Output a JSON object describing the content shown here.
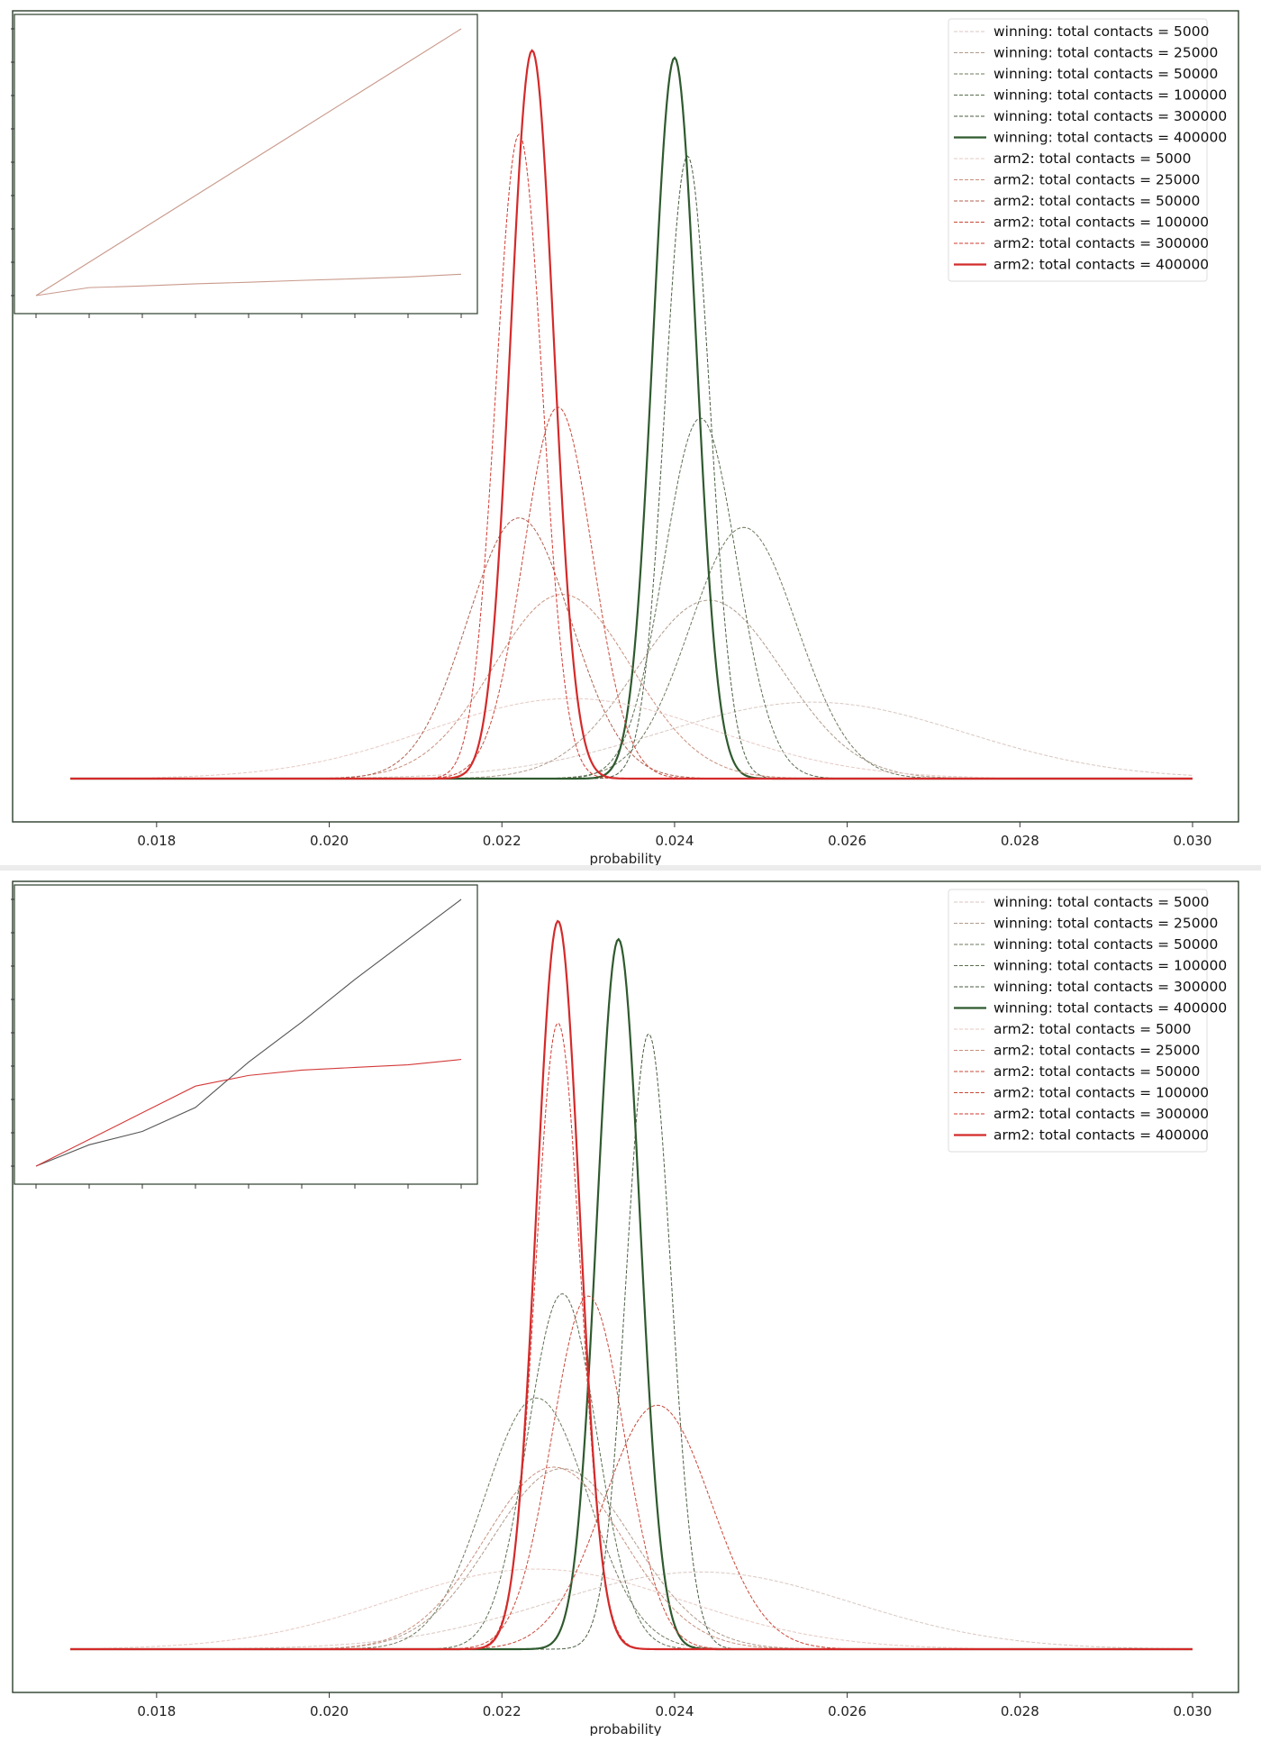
{
  "colors": {
    "winning_400000": "#2f5a2e",
    "arm2_400000": "#d42a2a"
  },
  "chart_data": [
    {
      "type": "line",
      "title": "",
      "xlabel": "probability",
      "ylabel": "",
      "xlim": [
        0.017,
        0.03
      ],
      "xticks": [
        "0.018",
        "0.020",
        "0.022",
        "0.024",
        "0.026",
        "0.028",
        "0.030"
      ],
      "grid": false,
      "legend_position": "top-right",
      "series": [
        {
          "name": "winning: total contacts = 5000",
          "group": "winning",
          "contacts": 5000,
          "mean": 0.0256,
          "sd": 0.00175,
          "peak": 0.105,
          "color": "#d8c7c0",
          "width": 1.0,
          "dashed": true
        },
        {
          "name": "winning: total contacts = 25000",
          "group": "winning",
          "contacts": 25000,
          "mean": 0.0244,
          "sd": 0.00085,
          "peak": 0.245,
          "color": "#b09b8c",
          "width": 1.0,
          "dashed": true
        },
        {
          "name": "winning: total contacts = 50000",
          "group": "winning",
          "contacts": 50000,
          "mean": 0.0248,
          "sd": 0.00062,
          "peak": 0.345,
          "color": "#6e7a5e",
          "width": 1.0,
          "dashed": true
        },
        {
          "name": "winning: total contacts = 100000",
          "group": "winning",
          "contacts": 100000,
          "mean": 0.0243,
          "sd": 0.00042,
          "peak": 0.495,
          "color": "#5a6e50",
          "width": 1.0,
          "dashed": true
        },
        {
          "name": "winning: total contacts = 300000",
          "group": "winning",
          "contacts": 300000,
          "mean": 0.02415,
          "sd": 0.00026,
          "peak": 0.855,
          "color": "#4a5e42",
          "width": 1.0,
          "dashed": true
        },
        {
          "name": "winning: total contacts = 400000",
          "group": "winning",
          "contacts": 400000,
          "mean": 0.024,
          "sd": 0.00025,
          "peak": 0.99,
          "color": "#2f5a2e",
          "width": 2.2,
          "dashed": false
        },
        {
          "name": "arm2: total contacts = 5000",
          "group": "arm2",
          "contacts": 5000,
          "mean": 0.0228,
          "sd": 0.00165,
          "peak": 0.11,
          "color": "#e6c9c3",
          "width": 1.0,
          "dashed": true
        },
        {
          "name": "arm2: total contacts = 25000",
          "group": "arm2",
          "contacts": 25000,
          "mean": 0.0227,
          "sd": 0.0008,
          "peak": 0.253,
          "color": "#c8907e",
          "width": 1.0,
          "dashed": true
        },
        {
          "name": "arm2: total contacts = 50000",
          "group": "arm2",
          "contacts": 50000,
          "mean": 0.0222,
          "sd": 0.0006,
          "peak": 0.358,
          "color": "#b06050",
          "width": 1.0,
          "dashed": true
        },
        {
          "name": "arm2: total contacts = 100000",
          "group": "arm2",
          "contacts": 100000,
          "mean": 0.02265,
          "sd": 0.0004,
          "peak": 0.51,
          "color": "#c84838",
          "width": 1.0,
          "dashed": true
        },
        {
          "name": "arm2: total contacts = 300000",
          "group": "arm2",
          "contacts": 300000,
          "mean": 0.0222,
          "sd": 0.00027,
          "peak": 0.885,
          "color": "#d03a30",
          "width": 1.0,
          "dashed": true
        },
        {
          "name": "arm2: total contacts = 400000",
          "group": "arm2",
          "contacts": 400000,
          "mean": 0.02235,
          "sd": 0.00025,
          "peak": 1.0,
          "color": "#d42a2a",
          "width": 2.2,
          "dashed": false
        }
      ],
      "inset": {
        "x": [
          0,
          1,
          2,
          3,
          4,
          5,
          6,
          7,
          8
        ],
        "lines": [
          {
            "color": "#c99a8c",
            "values": [
              0.0,
              0.125,
              0.25,
              0.375,
              0.5,
              0.625,
              0.75,
              0.875,
              1.0
            ]
          },
          {
            "color": "#c99a8c",
            "values": [
              0.0,
              0.03,
              0.036,
              0.044,
              0.05,
              0.057,
              0.063,
              0.07,
              0.08
            ]
          }
        ]
      }
    },
    {
      "type": "line",
      "title": "",
      "xlabel": "probability",
      "ylabel": "",
      "xlim": [
        0.017,
        0.03
      ],
      "xticks": [
        "0.018",
        "0.020",
        "0.022",
        "0.024",
        "0.026",
        "0.028",
        "0.030"
      ],
      "grid": false,
      "legend_position": "top-right",
      "series": [
        {
          "name": "winning: total contacts = 5000",
          "group": "winning",
          "contacts": 5000,
          "mean": 0.0243,
          "sd": 0.00175,
          "peak": 0.106,
          "color": "#d8c7c0",
          "width": 1.0,
          "dashed": true
        },
        {
          "name": "winning: total contacts = 25000",
          "group": "winning",
          "contacts": 25000,
          "mean": 0.0227,
          "sd": 0.00082,
          "peak": 0.248,
          "color": "#b09b8c",
          "width": 1.0,
          "dashed": true
        },
        {
          "name": "winning: total contacts = 50000",
          "group": "winning",
          "contacts": 50000,
          "mean": 0.0224,
          "sd": 0.0006,
          "peak": 0.345,
          "color": "#6e7a5e",
          "width": 1.0,
          "dashed": true
        },
        {
          "name": "winning: total contacts = 100000",
          "group": "winning",
          "contacts": 100000,
          "mean": 0.0227,
          "sd": 0.0004,
          "peak": 0.488,
          "color": "#5a6e50",
          "width": 1.0,
          "dashed": true
        },
        {
          "name": "winning: total contacts = 300000",
          "group": "winning",
          "contacts": 300000,
          "mean": 0.0237,
          "sd": 0.00026,
          "peak": 0.845,
          "color": "#4a5e42",
          "width": 1.0,
          "dashed": true
        },
        {
          "name": "winning: total contacts = 400000",
          "group": "winning",
          "contacts": 400000,
          "mean": 0.02335,
          "sd": 0.00025,
          "peak": 0.975,
          "color": "#2f5a2e",
          "width": 2.2,
          "dashed": false
        },
        {
          "name": "arm2: total contacts = 5000",
          "group": "arm2",
          "contacts": 5000,
          "mean": 0.0224,
          "sd": 0.0017,
          "peak": 0.11,
          "color": "#e6c9c3",
          "width": 1.0,
          "dashed": true
        },
        {
          "name": "arm2: total contacts = 25000",
          "group": "arm2",
          "contacts": 25000,
          "mean": 0.0226,
          "sd": 0.0008,
          "peak": 0.25,
          "color": "#c8907e",
          "width": 1.0,
          "dashed": true
        },
        {
          "name": "arm2: total contacts = 50000",
          "group": "arm2",
          "contacts": 50000,
          "mean": 0.0238,
          "sd": 0.00062,
          "peak": 0.335,
          "color": "#c84838",
          "width": 1.0,
          "dashed": true
        },
        {
          "name": "arm2: total contacts = 100000",
          "group": "arm2",
          "contacts": 100000,
          "mean": 0.023,
          "sd": 0.00042,
          "peak": 0.485,
          "color": "#c84838",
          "width": 1.0,
          "dashed": true
        },
        {
          "name": "arm2: total contacts = 300000",
          "group": "arm2",
          "contacts": 300000,
          "mean": 0.02265,
          "sd": 0.00026,
          "peak": 0.86,
          "color": "#d03a30",
          "width": 1.0,
          "dashed": true
        },
        {
          "name": "arm2: total contacts = 400000",
          "group": "arm2",
          "contacts": 400000,
          "mean": 0.02265,
          "sd": 0.00025,
          "peak": 1.0,
          "color": "#d42a2a",
          "width": 2.2,
          "dashed": false
        }
      ],
      "inset": {
        "x": [
          0,
          1,
          2,
          3,
          4,
          5,
          6,
          7,
          8
        ],
        "lines": [
          {
            "color": "#555555",
            "values": [
              0.0,
              0.08,
              0.13,
              0.22,
              0.39,
              0.54,
              0.7,
              0.85,
              1.0
            ]
          },
          {
            "color": "#d43a3a",
            "values": [
              0.0,
              0.1,
              0.2,
              0.3,
              0.34,
              0.36,
              0.37,
              0.38,
              0.4
            ]
          }
        ]
      }
    }
  ]
}
